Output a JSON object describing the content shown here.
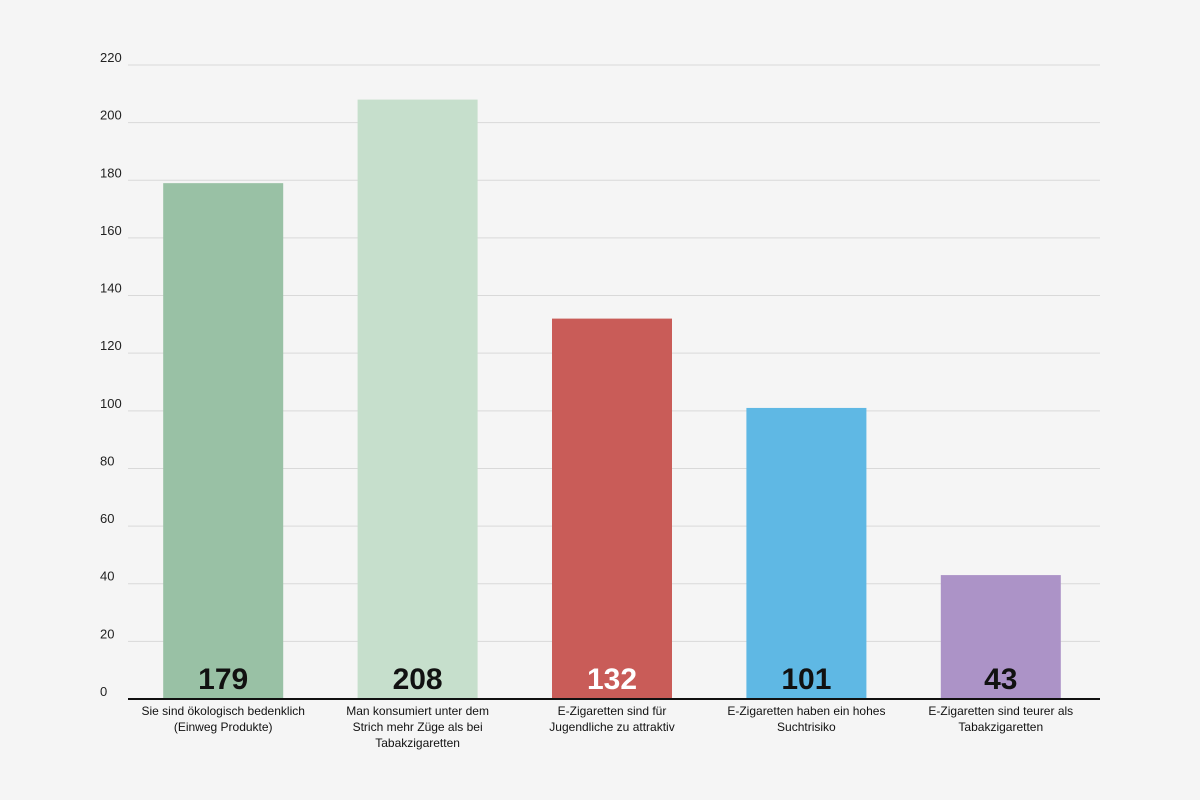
{
  "chart_data": {
    "type": "bar",
    "title": "",
    "xlabel": "",
    "ylabel": "",
    "ylim": [
      0,
      220
    ],
    "yticks": [
      0,
      20,
      40,
      60,
      80,
      100,
      120,
      140,
      160,
      180,
      200,
      220
    ],
    "grid": true,
    "legend": "none",
    "categories": [
      [
        "Sie sind ökologisch bedenklich",
        "(Einweg Produkte)"
      ],
      [
        "Man konsumiert unter dem",
        "Strich mehr Züge als bei",
        "Tabakzigaretten"
      ],
      [
        "E-Zigaretten sind für",
        "Jugendliche zu attraktiv"
      ],
      [
        "E-Zigaretten haben ein hohes",
        "Suchtrisiko"
      ],
      [
        "E-Zigaretten sind teurer als",
        "Tabakzigaretten"
      ]
    ],
    "values": [
      179,
      208,
      132,
      101,
      43
    ],
    "colors": [
      "#99c1a5",
      "#c6dfcc",
      "#c95c58",
      "#5fb8e4",
      "#ac93c7"
    ],
    "value_label_colors": [
      "#111111",
      "#111111",
      "#ffffff",
      "#111111",
      "#111111"
    ],
    "grid_color": "#d9d9d9",
    "axis_color": "#111111"
  }
}
